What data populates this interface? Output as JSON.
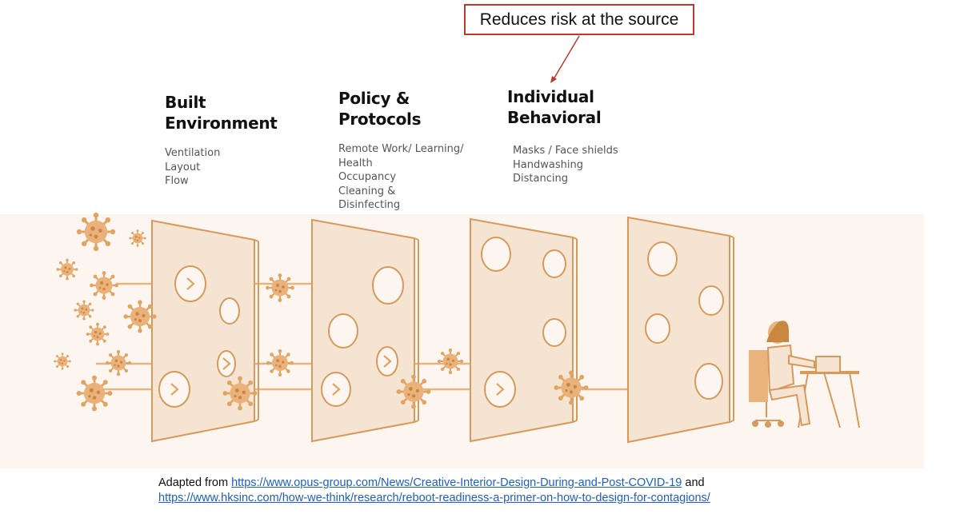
{
  "callout": {
    "text": "Reduces risk at the source"
  },
  "columns": [
    {
      "heading_line1": "Built",
      "heading_line2": "Environment",
      "items": [
        "Ventilation",
        "Layout",
        "Flow"
      ]
    },
    {
      "heading_line1": "Policy &",
      "heading_line2": "Protocols",
      "items": [
        "Remote Work/ Learning/",
        "Health",
        "Occupancy",
        "Cleaning &",
        "Disinfecting"
      ]
    },
    {
      "heading_line1": "Individual",
      "heading_line2": "Behavioral",
      "items": [
        "Masks / Face shields",
        "Handwashing",
        "Distancing"
      ]
    }
  ],
  "footer": {
    "prefix": "Adapted from ",
    "link1": "https://www.opus-group.com/News/Creative-Interior-Design-During-and-Post-COVID-19",
    "middle": " and",
    "link2": "https://www.hksinc.com/how-we-think/research/reboot-readiness-a-primer-on-how-to-design-for-contagions/"
  },
  "colors": {
    "accent": "#e8b47c",
    "virus": "#e0a463",
    "panel": "#f5e4d2",
    "callout_border": "#c0392b",
    "link": "#1f5fbf"
  },
  "icons": [
    "virus-icon",
    "barrier-panel",
    "person-at-desk-icon",
    "arrow-icon"
  ]
}
